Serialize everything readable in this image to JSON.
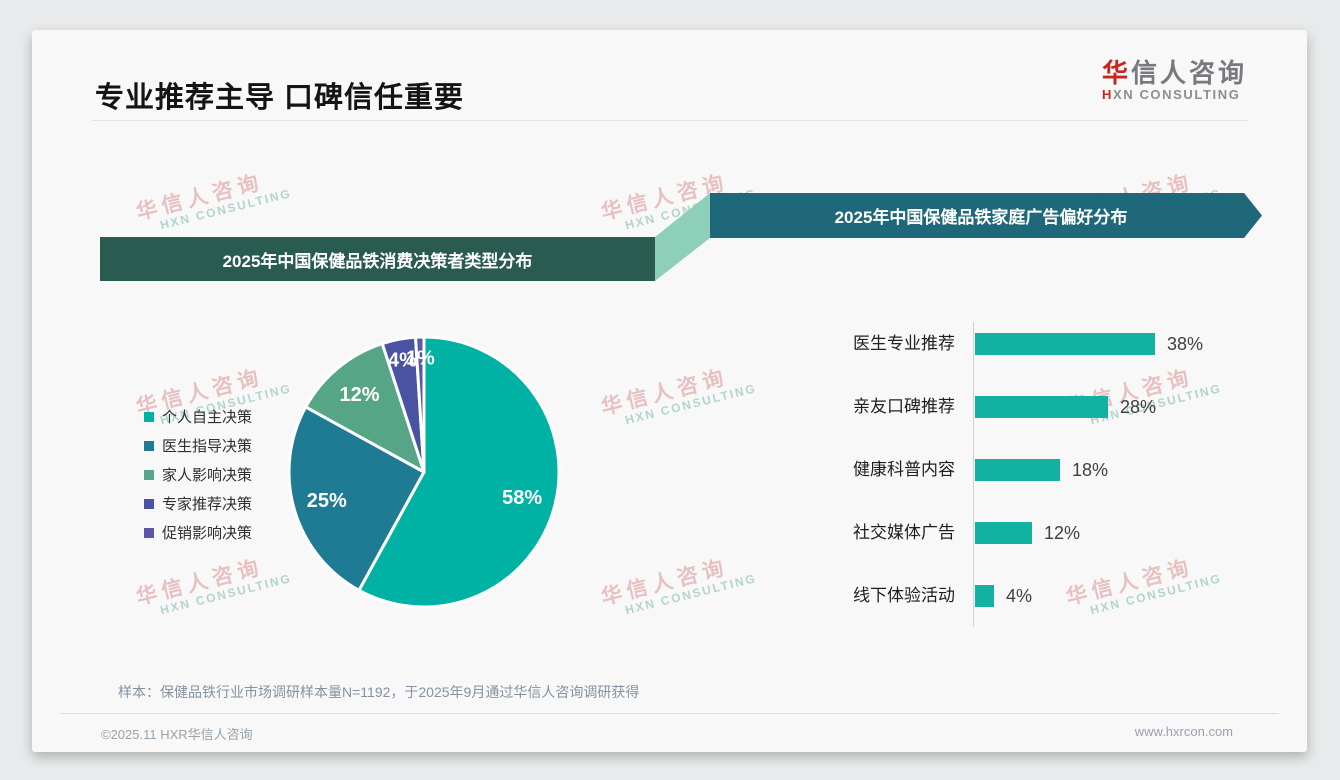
{
  "page": {
    "title": "专业推荐主导 口碑信任重要",
    "logo": {
      "zh_first": "华",
      "zh_rest": "信人咨询",
      "en_first": "H",
      "en_rest": "XN CONSULTING"
    },
    "footnote": "样本：保健品铁行业市场调研样本量N=1192，于2025年9月通过华信人咨询调研获得",
    "footer_left": "©2025.11 HXR华信人咨询",
    "footer_right": "www.hxrcon.com"
  },
  "watermark": {
    "line1": "华信人咨询",
    "line2": "HXN CONSULTING"
  },
  "colors": {
    "banner_left": "#2a5b50",
    "banner_right": "#1f6879",
    "connector": "#8ecfba",
    "bar": "#12b1a2",
    "logo_accent": "#c5271f"
  },
  "chart_data": [
    {
      "type": "pie",
      "title": "2025年中国保健品铁消费决策者类型分布",
      "labels": [
        "个人自主决策",
        "医生指导决策",
        "家人影响决策",
        "专家推荐决策",
        "促销影响决策"
      ],
      "values": [
        58,
        25,
        12,
        4,
        1
      ],
      "slice_labels": [
        "58%",
        "25%",
        "12%",
        "4%",
        "1%"
      ],
      "unit": "%",
      "colors": [
        "#00b2a3",
        "#1e7b93",
        "#55a586",
        "#4a52a4",
        "#5c55a8"
      ],
      "start_angle": "top",
      "direction": "clockwise",
      "legend_position": "left"
    },
    {
      "type": "bar",
      "title": "2025年中国保健品铁家庭广告偏好分布",
      "orientation": "horizontal",
      "categories": [
        "医生专业推荐",
        "亲友口碑推荐",
        "健康科普内容",
        "社交媒体广告",
        "线下体验活动"
      ],
      "values": [
        38,
        28,
        18,
        12,
        4
      ],
      "value_labels": [
        "38%",
        "28%",
        "18%",
        "12%",
        "4%"
      ],
      "unit": "%",
      "bar_color": "#12b1a2",
      "xlim": [
        0,
        40
      ],
      "grid": false
    }
  ]
}
